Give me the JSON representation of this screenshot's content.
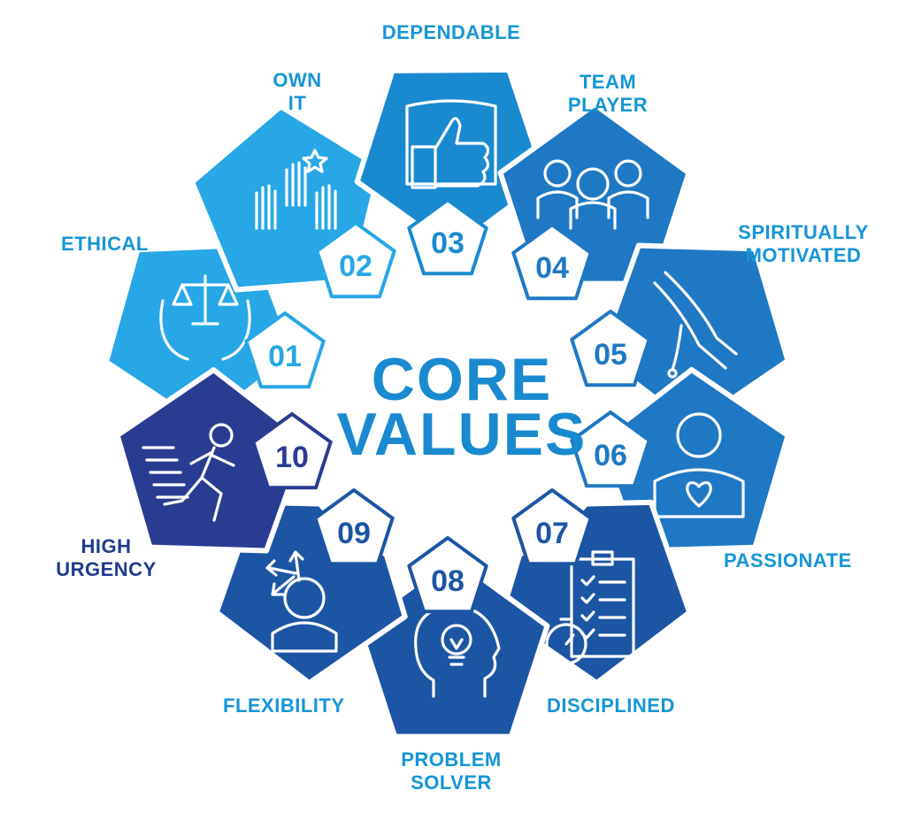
{
  "center": {
    "line1": "CORE",
    "line2": "VALUES"
  },
  "colors": {
    "light_blue": "#27a7e6",
    "mid_blue": "#1a8ad0",
    "blue": "#1f78c3",
    "dark_blue": "#1c55a3",
    "navy": "#2a3c92",
    "label_blue": "#1496d6",
    "label_dark": "#203a8f"
  },
  "values": [
    {
      "num": "01",
      "label": "ETHICAL",
      "icon": "scales-hands-icon"
    },
    {
      "num": "02",
      "label": "OWN\nIT",
      "icon": "raised-hands-star-icon"
    },
    {
      "num": "03",
      "label": "DEPENDABLE",
      "icon": "thumbs-up-shield-icon"
    },
    {
      "num": "04",
      "label": "TEAM\nPLAYER",
      "icon": "team-icon"
    },
    {
      "num": "05",
      "label": "SPIRITUALLY\nMOTIVATED",
      "icon": "praying-hands-icon"
    },
    {
      "num": "06",
      "label": "PASSIONATE",
      "icon": "person-heart-icon"
    },
    {
      "num": "07",
      "label": "DISCIPLINED",
      "icon": "clipboard-stopwatch-icon"
    },
    {
      "num": "08",
      "label": "PROBLEM\nSOLVER",
      "icon": "head-lightbulb-icon"
    },
    {
      "num": "09",
      "label": "FLEXIBILITY",
      "icon": "head-arrows-icon"
    },
    {
      "num": "10",
      "label": "HIGH\nURGENCY",
      "icon": "running-person-icon"
    }
  ]
}
